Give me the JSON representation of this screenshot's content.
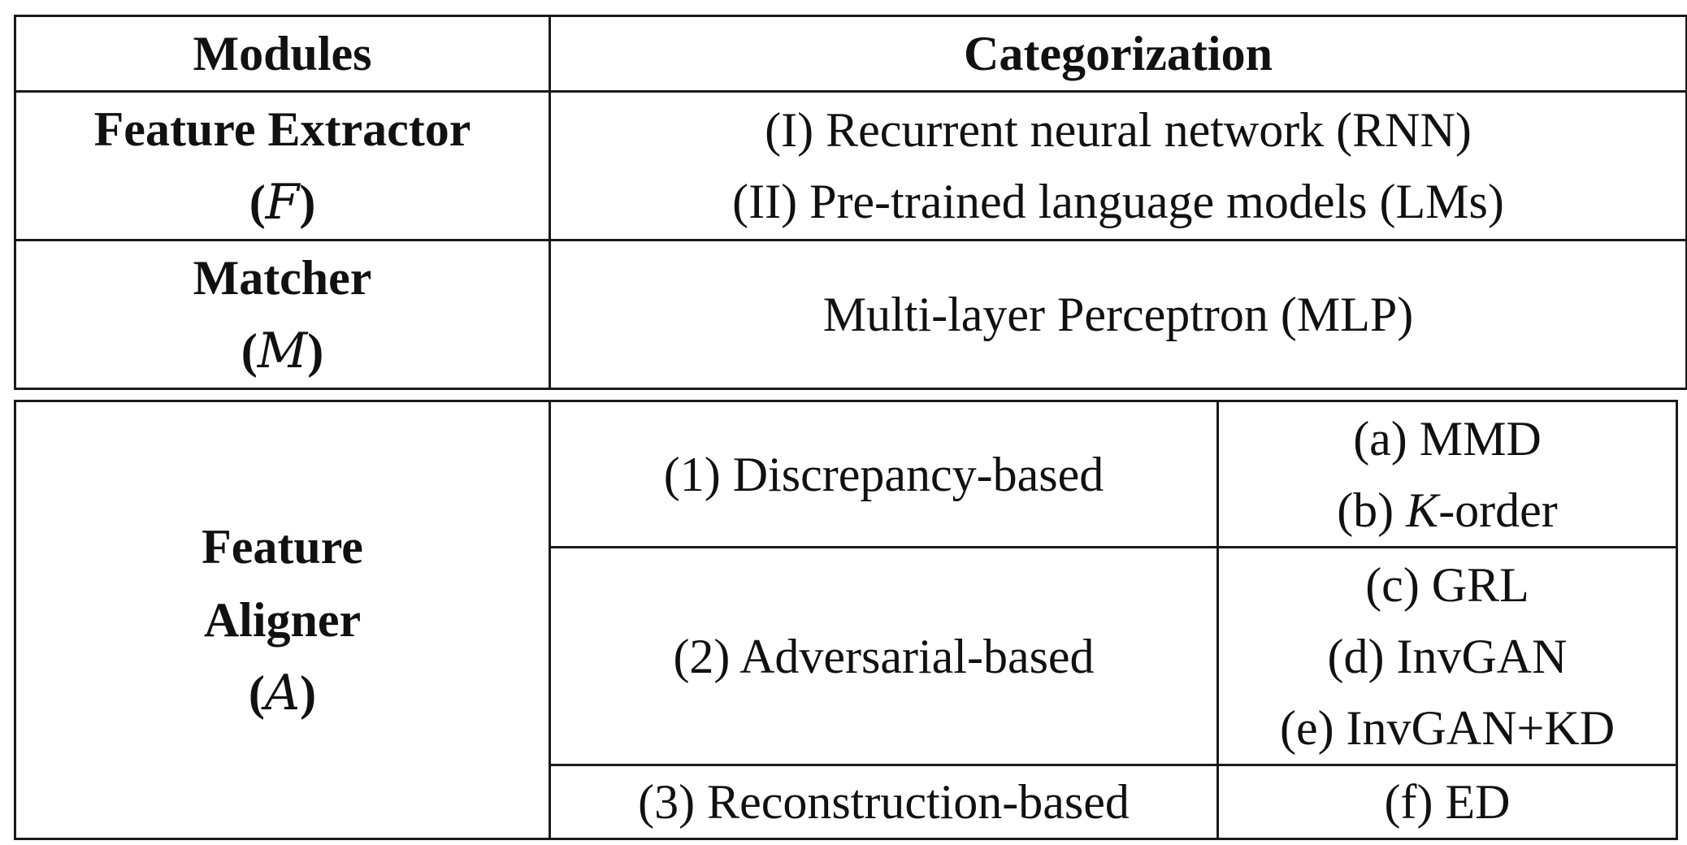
{
  "header": {
    "modules": "Modules",
    "categorization": "Categorization"
  },
  "feature_extractor": {
    "name": "Feature Extractor",
    "symbol_open": "(",
    "symbol": "F",
    "symbol_close": ")",
    "items": [
      "(I) Recurrent neural network (RNN)",
      "(II) Pre-trained language models (LMs)"
    ]
  },
  "matcher": {
    "name": "Matcher",
    "symbol_open": "(",
    "symbol": "M",
    "symbol_close": ")",
    "category": "Multi-layer Perceptron (MLP)"
  },
  "feature_aligner": {
    "name_line1": "Feature",
    "name_line2": "Aligner",
    "symbol_open": "(",
    "symbol": "A",
    "symbol_close": ")",
    "groups": [
      {
        "label": "(1) Discrepancy-based",
        "methods": [
          "(a) MMD",
          "(b) ",
          "K",
          "-order"
        ]
      },
      {
        "label": "(2) Adversarial-based",
        "methods": [
          "(c) GRL",
          "(d) InvGAN",
          "(e) InvGAN+KD"
        ]
      },
      {
        "label": "(3) Reconstruction-based",
        "methods": [
          "(f) ED"
        ]
      }
    ]
  }
}
